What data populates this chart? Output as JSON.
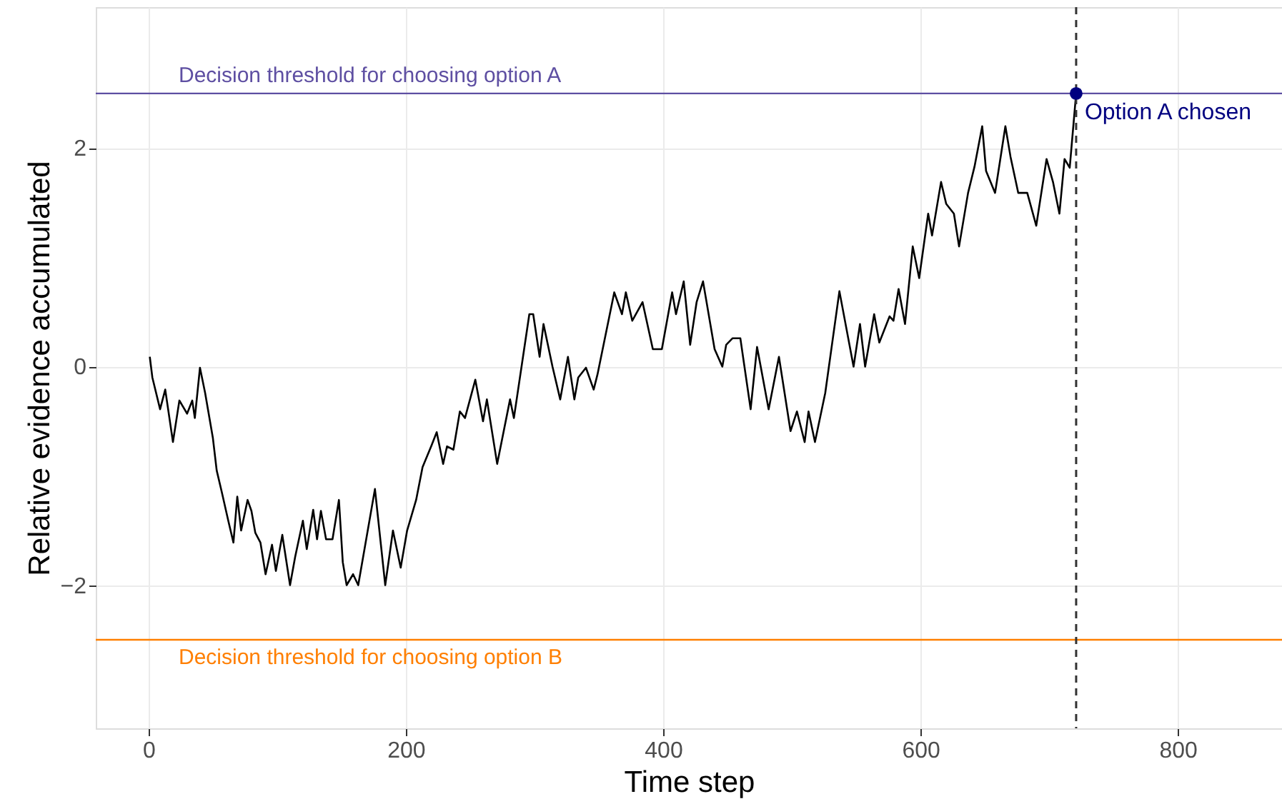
{
  "chart_data": {
    "type": "line",
    "xlabel": "Time step",
    "ylabel": "Relative evidence accumulated",
    "xlim": [
      -41,
      881
    ],
    "xticks": [
      0,
      200,
      400,
      600,
      800
    ],
    "ylim": [
      -3.31,
      3.29
    ],
    "yticks": [
      -2,
      0,
      2
    ],
    "grid": true,
    "series": [
      {
        "color": "#000000",
        "line_style": "solid",
        "marker": "none",
        "x": [
          1,
          3,
          9,
          13,
          19,
          24,
          30,
          34,
          36,
          40,
          44,
          50,
          53,
          57,
          62,
          66,
          69,
          72,
          77,
          80,
          83,
          87,
          91,
          96,
          99,
          104,
          110,
          114,
          120,
          123,
          128,
          131,
          134,
          138,
          143,
          148,
          151,
          154,
          159,
          163,
          176,
          184,
          190,
          196,
          201,
          208,
          213,
          220,
          224,
          229,
          232,
          237,
          242,
          246,
          254,
          260,
          263,
          271,
          281,
          284,
          296,
          299,
          304,
          307,
          314,
          320,
          326,
          331,
          334,
          340,
          346,
          349,
          362,
          368,
          371,
          376,
          384,
          392,
          399,
          407,
          410,
          416,
          421,
          426,
          431,
          440,
          446,
          449,
          454,
          460,
          468,
          473,
          482,
          490,
          499,
          504,
          510,
          513,
          518,
          526,
          537,
          548,
          553,
          557,
          564,
          568,
          576,
          579,
          583,
          588,
          594,
          599,
          606,
          609,
          616,
          620,
          626,
          630,
          637,
          642,
          648,
          651,
          658,
          666,
          670,
          676,
          683,
          690,
          698,
          703,
          708,
          712,
          716,
          721
        ],
        "values": [
          0.09,
          -0.1,
          -0.39,
          -0.21,
          -0.69,
          -0.31,
          -0.43,
          -0.31,
          -0.47,
          -0.01,
          -0.24,
          -0.65,
          -0.95,
          -1.15,
          -1.41,
          -1.61,
          -1.19,
          -1.5,
          -1.22,
          -1.32,
          -1.52,
          -1.61,
          -1.9,
          -1.63,
          -1.87,
          -1.54,
          -2.0,
          -1.74,
          -1.41,
          -1.67,
          -1.31,
          -1.58,
          -1.32,
          -1.58,
          -1.58,
          -1.22,
          -1.79,
          -2.0,
          -1.9,
          -2.0,
          -1.12,
          -2.0,
          -1.5,
          -1.84,
          -1.5,
          -1.22,
          -0.92,
          -0.72,
          -0.6,
          -0.89,
          -0.73,
          -0.76,
          -0.41,
          -0.47,
          -0.12,
          -0.5,
          -0.3,
          -0.89,
          -0.3,
          -0.47,
          0.48,
          0.48,
          0.09,
          0.39,
          0.0,
          -0.3,
          0.09,
          -0.3,
          -0.1,
          -0.01,
          -0.21,
          -0.07,
          0.68,
          0.48,
          0.68,
          0.42,
          0.59,
          0.16,
          0.16,
          0.68,
          0.48,
          0.78,
          0.2,
          0.59,
          0.78,
          0.16,
          0.0,
          0.2,
          0.26,
          0.26,
          -0.39,
          0.18,
          -0.39,
          0.09,
          -0.59,
          -0.41,
          -0.69,
          -0.41,
          -0.69,
          -0.24,
          0.69,
          0.0,
          0.39,
          0.0,
          0.48,
          0.22,
          0.46,
          0.42,
          0.71,
          0.39,
          1.1,
          0.81,
          1.4,
          1.2,
          1.69,
          1.49,
          1.4,
          1.1,
          1.59,
          1.83,
          2.2,
          1.79,
          1.59,
          2.2,
          1.92,
          1.59,
          1.59,
          1.29,
          1.9,
          1.69,
          1.4,
          1.9,
          1.82,
          2.5
        ]
      },
      {
        "type": "scatter",
        "color": "#000080",
        "marker": "circle",
        "x": [
          721
        ],
        "values": [
          2.5
        ]
      }
    ],
    "ref_lines": [
      {
        "axis": "y",
        "value": 2.5,
        "label": "Decision threshold for choosing option A",
        "color": "#5e4fa2",
        "line_style": "solid"
      },
      {
        "axis": "y",
        "value": -2.5,
        "label": "Decision threshold for choosing option B",
        "color": "#ff7f00",
        "line_style": "solid"
      },
      {
        "axis": "x",
        "value": 721,
        "label": null,
        "color": "#333333",
        "line_style": "dashed"
      }
    ],
    "annotations": [
      {
        "text": "Option A chosen",
        "x": 721,
        "y": 2.5
      }
    ]
  }
}
